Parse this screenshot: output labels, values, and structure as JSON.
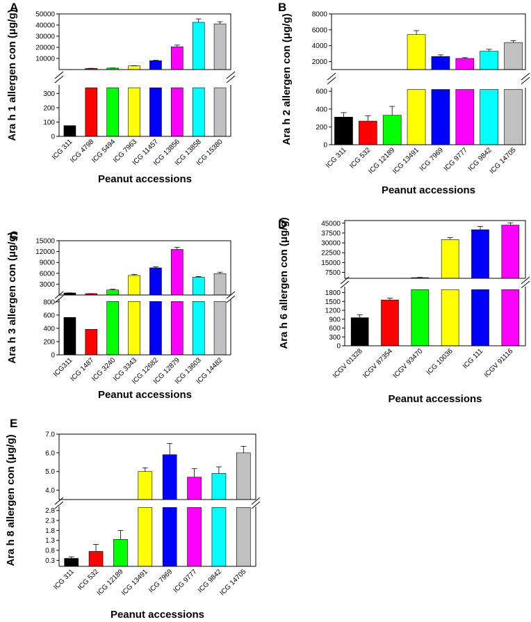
{
  "chart_data": [
    {
      "panel": "A",
      "type": "bar",
      "ylabel": "Ara h 1 allergen con (μg/g)",
      "xlabel": "Peanut accessions",
      "categories": [
        "ICG 311",
        "ICG 4798",
        "ICG 5494",
        "ICG 7963",
        "ICG 11457",
        "ICG 13856",
        "ICG 13858",
        "ICG 15380"
      ],
      "values": [
        75,
        1000,
        1300,
        3300,
        8000,
        20500,
        42500,
        41000
      ],
      "errors": [
        10,
        150,
        150,
        200,
        300,
        1500,
        3000,
        2000
      ],
      "colors": [
        "#000000",
        "#ff0000",
        "#00ff00",
        "#ffff00",
        "#0000ff",
        "#ff00ff",
        "#00ffff",
        "#c0c0c0"
      ],
      "lower_ylim": [
        0,
        360
      ],
      "upper_ylim": [
        0,
        50000
      ],
      "lower_ticks": [
        "0",
        "100",
        "200",
        "300"
      ],
      "upper_ticks": [
        "10000",
        "20000",
        "30000",
        "40000",
        "50000"
      ],
      "lower_tick_values": [
        0,
        100,
        200,
        300
      ],
      "upper_tick_values": [
        10000,
        20000,
        30000,
        40000,
        50000
      ]
    },
    {
      "panel": "B",
      "type": "bar",
      "ylabel": "Ara h 2 allergen con (μg/g)",
      "xlabel": "Peanut accessions",
      "categories": [
        "ICG 311",
        "ICG 532",
        "ICG 12189",
        "ICG 13491",
        "ICG 7969",
        "ICG 9777",
        "ICG 9842",
        "ICG 14705"
      ],
      "values": [
        310,
        265,
        330,
        5400,
        2650,
        2400,
        3300,
        4400
      ],
      "errors": [
        50,
        60,
        100,
        500,
        200,
        100,
        250,
        250
      ],
      "colors": [
        "#000000",
        "#ff0000",
        "#00ff00",
        "#ffff00",
        "#0000ff",
        "#ff00ff",
        "#00ffff",
        "#c0c0c0"
      ],
      "lower_ylim": [
        0,
        640
      ],
      "upper_ylim": [
        1000,
        8000
      ],
      "lower_ticks": [
        "0",
        "200",
        "400",
        "600"
      ],
      "upper_ticks": [
        "2000",
        "4000",
        "6000",
        "8000"
      ],
      "lower_tick_values": [
        0,
        200,
        400,
        600
      ],
      "upper_tick_values": [
        2000,
        4000,
        6000,
        8000
      ]
    },
    {
      "panel": "C",
      "type": "bar",
      "ylabel": "Ara h 3 allergen con (μg/g)",
      "xlabel": "Peanut accessions",
      "categories": [
        "ICG311",
        "ICG 1487",
        "ICG 3240",
        "ICG 3343",
        "ICG 12682",
        "ICG 12879",
        "ICG 13603",
        "ICG 14482"
      ],
      "values": [
        565,
        385,
        1400,
        5400,
        7500,
        12600,
        4900,
        5900
      ],
      "errors": [
        30,
        15,
        200,
        300,
        300,
        600,
        200,
        400
      ],
      "colors": [
        "#000000",
        "#ff0000",
        "#00ff00",
        "#ffff00",
        "#0000ff",
        "#ff00ff",
        "#00ffff",
        "#c0c0c0"
      ],
      "lower_ylim": [
        0,
        840
      ],
      "upper_ylim": [
        0,
        15000
      ],
      "lower_ticks": [
        "0",
        "200",
        "400",
        "600",
        "800"
      ],
      "upper_ticks": [
        "3000",
        "6000",
        "9000",
        "12000",
        "15000"
      ],
      "lower_tick_values": [
        0,
        200,
        400,
        600,
        800
      ],
      "upper_tick_values": [
        3000,
        6000,
        9000,
        12000,
        15000
      ]
    },
    {
      "panel": "D",
      "type": "bar",
      "ylabel": "Ara h 6 allergen con (μg/g)",
      "xlabel": "Peanut accessions",
      "categories": [
        "ICGV 01328",
        "ICGV 87354",
        "ICGV 93470",
        "ICG 10036",
        "ICG 111",
        "ICGV 91116"
      ],
      "values": [
        950,
        1550,
        3500,
        32500,
        40000,
        43500
      ],
      "errors": [
        100,
        60,
        200,
        1500,
        2500,
        1800
      ],
      "colors": [
        "#000000",
        "#ff0000",
        "#00ff00",
        "#ffff00",
        "#0000ff",
        "#ff00ff"
      ],
      "lower_ylim": [
        0,
        2000
      ],
      "upper_ylim": [
        3000,
        47000
      ],
      "lower_ticks": [
        "0",
        "300",
        "600",
        "900",
        "1200",
        "1500",
        "1800"
      ],
      "upper_ticks": [
        "7500",
        "15000",
        "22500",
        "30000",
        "37500",
        "45000"
      ],
      "lower_tick_values": [
        0,
        300,
        600,
        900,
        1200,
        1500,
        1800
      ],
      "upper_tick_values": [
        7500,
        15000,
        22500,
        30000,
        37500,
        45000
      ]
    },
    {
      "panel": "E",
      "type": "bar",
      "ylabel": "Ara h 8 allergen con (μg/g)",
      "xlabel": "Peanut accessions",
      "categories": [
        "ICG 311",
        "ICG 532",
        "ICG 12189",
        "ICG 13491",
        "ICG 7969",
        "ICG 9777",
        "ICG 9842",
        "ICG 14705"
      ],
      "values": [
        0.4,
        0.75,
        1.35,
        5.0,
        5.9,
        4.7,
        4.9,
        6.0
      ],
      "errors": [
        0.08,
        0.35,
        0.45,
        0.2,
        0.6,
        0.45,
        0.35,
        0.35
      ],
      "colors": [
        "#000000",
        "#ff0000",
        "#00ff00",
        "#ffff00",
        "#0000ff",
        "#ff00ff",
        "#00ffff",
        "#c0c0c0"
      ],
      "lower_ylim": [
        0,
        3.0
      ],
      "upper_ylim": [
        3.5,
        7.0
      ],
      "lower_ticks": [
        "0.3",
        "0.8",
        "1.3",
        "1.8",
        "2.3",
        "2.8"
      ],
      "upper_ticks": [
        "4.0",
        "5.0",
        "6.0",
        "7.0"
      ],
      "lower_tick_values": [
        0.3,
        0.8,
        1.3,
        1.8,
        2.3,
        2.8
      ],
      "upper_tick_values": [
        4.0,
        5.0,
        6.0,
        7.0
      ]
    }
  ]
}
